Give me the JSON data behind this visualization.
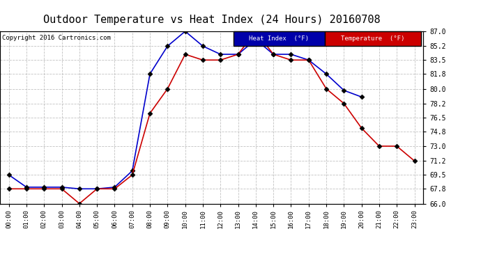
{
  "title": "Outdoor Temperature vs Heat Index (24 Hours) 20160708",
  "copyright": "Copyright 2016 Cartronics.com",
  "hours": [
    "00:00",
    "01:00",
    "02:00",
    "03:00",
    "04:00",
    "05:00",
    "06:00",
    "07:00",
    "08:00",
    "09:00",
    "10:00",
    "11:00",
    "12:00",
    "13:00",
    "14:00",
    "15:00",
    "16:00",
    "17:00",
    "18:00",
    "19:00",
    "20:00",
    "21:00",
    "22:00",
    "23:00"
  ],
  "heat_index": [
    69.5,
    68.0,
    68.0,
    68.0,
    67.8,
    67.8,
    68.0,
    70.0,
    81.8,
    85.2,
    87.0,
    85.2,
    84.2,
    84.2,
    86.0,
    84.2,
    84.2,
    83.5,
    81.8,
    79.8,
    79.0,
    null,
    null,
    null
  ],
  "temperature": [
    67.8,
    67.8,
    67.8,
    67.8,
    66.0,
    67.8,
    67.8,
    69.5,
    77.0,
    80.0,
    84.2,
    83.5,
    83.5,
    84.2,
    87.0,
    84.2,
    83.5,
    83.5,
    80.0,
    78.2,
    75.2,
    73.0,
    73.0,
    71.2
  ],
  "heat_index_color": "#0000cc",
  "temperature_color": "#cc0000",
  "ylim_min": 66.0,
  "ylim_max": 87.0,
  "yticks": [
    66.0,
    67.8,
    69.5,
    71.2,
    73.0,
    74.8,
    76.5,
    78.2,
    80.0,
    81.8,
    83.5,
    85.2,
    87.0
  ],
  "background_color": "#ffffff",
  "grid_color": "#bbbbbb",
  "legend_heat_bg": "#0000aa",
  "legend_temp_bg": "#cc0000",
  "title_fontsize": 11,
  "marker": "D",
  "marker_size": 3.5
}
